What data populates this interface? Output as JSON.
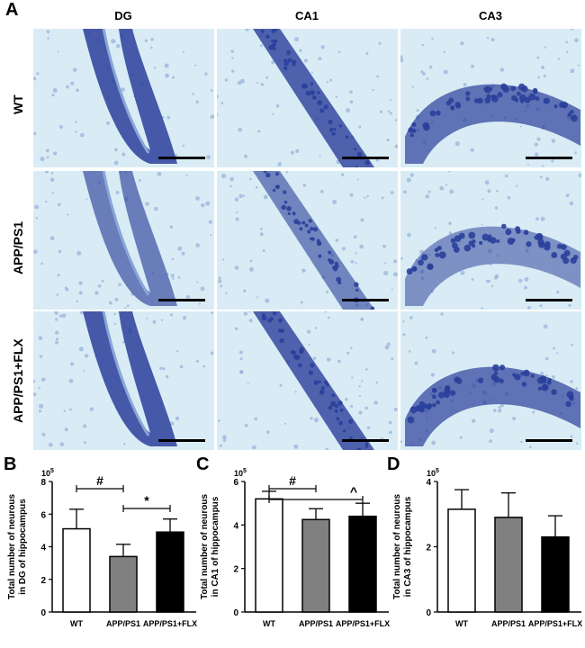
{
  "figure": {
    "panel_a_label": "A",
    "columns": [
      "DG",
      "CA1",
      "CA3"
    ],
    "rows": [
      "WT",
      "APP/PS1",
      "APP/PS1+FLX"
    ],
    "colors": {
      "background": "#d9ecf5",
      "stain": "#2a3f9a",
      "stain_light": "#8aa6d6"
    }
  },
  "chart_data": [
    {
      "panel": "B",
      "type": "bar",
      "categories": [
        "WT",
        "APP/PS1",
        "APP/PS1+FLX"
      ],
      "values": [
        5.1,
        3.4,
        4.9
      ],
      "errors": [
        1.2,
        0.75,
        0.8
      ],
      "colors": [
        "#ffffff",
        "#808080",
        "#000000"
      ],
      "ylabel": "Total number of neurous in DG of hippocampus",
      "exponent": "10",
      "exponent_power": "5",
      "ylim": [
        0,
        8
      ],
      "yticks": [
        "0",
        "2",
        "4",
        "6",
        "8"
      ],
      "annotations": [
        {
          "symbol": "#",
          "from": 0,
          "to": 1
        },
        {
          "symbol": "*",
          "from": 1,
          "to": 2
        }
      ]
    },
    {
      "panel": "C",
      "type": "bar",
      "categories": [
        "WT",
        "APP/PS1",
        "APP/PS1+FLX"
      ],
      "values": [
        5.2,
        4.25,
        4.4
      ],
      "errors": [
        0.35,
        0.5,
        0.6
      ],
      "colors": [
        "#ffffff",
        "#808080",
        "#000000"
      ],
      "ylabel": "Total number of neurous in CA1 of hippocampus",
      "exponent": "10",
      "exponent_power": "5",
      "ylim": [
        0,
        6
      ],
      "yticks": [
        "0",
        "2",
        "4",
        "6"
      ],
      "annotations": [
        {
          "symbol": "#",
          "from": 0,
          "to": 1
        },
        {
          "symbol": "^",
          "from": 0,
          "to": 2
        }
      ]
    },
    {
      "panel": "D",
      "type": "bar",
      "categories": [
        "WT",
        "APP/PS1",
        "APP/PS1+FLX"
      ],
      "values": [
        3.15,
        2.9,
        2.3
      ],
      "errors": [
        0.6,
        0.75,
        0.65
      ],
      "colors": [
        "#ffffff",
        "#808080",
        "#000000"
      ],
      "ylabel": "Total number of neurous in CA3 of hippocampus",
      "exponent": "10",
      "exponent_power": "5",
      "ylim": [
        0,
        4
      ],
      "yticks": [
        "0",
        "2",
        "4"
      ],
      "annotations": []
    }
  ]
}
